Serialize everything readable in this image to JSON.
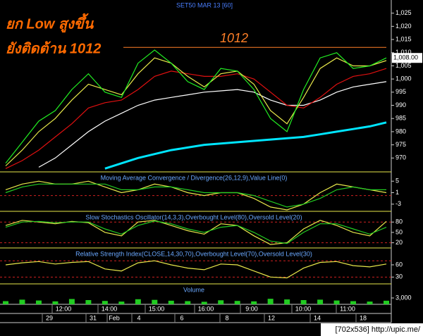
{
  "chart_data": [
    {
      "type": "line",
      "title": "SET50 MAR 13  [60]",
      "annotations": [
        "ยก Low สูงขึ้น",
        "ยังติดต้าน 1012"
      ],
      "resistance": 1012,
      "last_price": {
        "value": 1008,
        "label": "1,008.00"
      },
      "ylim": [
        965,
        1030
      ],
      "yticks": [
        970,
        975,
        980,
        985,
        990,
        995,
        {
          "value": 1000,
          "label": "1,000"
        },
        {
          "value": 1005,
          "label": "1,005"
        },
        {
          "value": 1010,
          "label": "1,010"
        },
        {
          "value": 1015,
          "label": "1,015"
        },
        {
          "value": 1020,
          "label": "1,020"
        },
        {
          "value": 1025,
          "label": "1,025"
        }
      ],
      "series": [
        {
          "color": "#ffffff",
          "values": [
            null,
            null,
            966.5,
            970,
            975,
            980,
            984,
            987,
            990,
            992,
            993,
            994,
            995,
            995.5,
            996,
            995,
            992,
            990,
            990,
            992,
            995,
            997,
            998,
            999
          ]
        },
        {
          "color": "#00e5ff",
          "values": [
            null,
            null,
            null,
            null,
            null,
            null,
            966,
            968,
            970,
            971.5,
            973,
            974,
            975,
            975.5,
            976,
            976.5,
            977,
            977.5,
            978,
            979,
            980,
            981,
            982,
            983.5
          ]
        },
        {
          "color": "#e01010",
          "values": [
            966,
            969,
            973,
            978,
            983,
            989,
            991,
            992,
            996,
            1001,
            1003,
            1002,
            1001,
            1001,
            1002,
            1000,
            995,
            990,
            989,
            993,
            998,
            1001,
            1002,
            1004
          ]
        },
        {
          "color": "#e8e84a",
          "values": [
            967,
            973,
            980,
            985,
            992,
            998,
            996,
            994,
            1002,
            1008,
            1006,
            1001,
            997,
            1002,
            1003,
            998,
            988,
            983,
            993,
            1004,
            1008,
            1005,
            1005,
            1007
          ]
        },
        {
          "color": "#22ee22",
          "values": [
            968,
            976,
            984,
            988,
            996,
            1002,
            995,
            993,
            1006,
            1011,
            1006,
            999,
            996,
            1004,
            1003,
            996,
            985,
            980,
            996,
            1008,
            1010,
            1004,
            1005,
            1008
          ]
        }
      ]
    },
    {
      "type": "line",
      "title": "Moving Average Convergence / Divergence(26,12,9),Value Line(0)",
      "ylim": [
        -5.25,
        7.75
      ],
      "yticks": [
        -3,
        1,
        5
      ],
      "levels": [
        0
      ],
      "series": [
        {
          "color": "#e8e84a",
          "values": [
            2,
            4,
            5,
            4,
            4,
            5,
            3,
            1,
            2,
            4,
            3,
            1,
            0,
            1,
            1,
            -1,
            -4,
            -5,
            -3,
            1,
            4,
            3,
            2,
            1
          ]
        },
        {
          "color": "#22cc22",
          "values": [
            1,
            3,
            4,
            4,
            4,
            4,
            4,
            2,
            2,
            3,
            3,
            2,
            1,
            1,
            1,
            0,
            -2,
            -4,
            -3,
            -1,
            2,
            3,
            2,
            2
          ]
        }
      ]
    },
    {
      "type": "line",
      "title": "Slow Stochastics Oscillator(14,3,3),Overbought Level(80),Oversold Level(20)",
      "ylim": [
        7,
        107
      ],
      "yticks": [
        20,
        50,
        80
      ],
      "levels": [
        80,
        20
      ],
      "series": [
        {
          "color": "#e8e84a",
          "values": [
            70,
            85,
            80,
            75,
            82,
            78,
            50,
            40,
            80,
            85,
            70,
            55,
            45,
            75,
            70,
            40,
            15,
            20,
            60,
            85,
            70,
            50,
            40,
            82
          ]
        },
        {
          "color": "#22cc22",
          "values": [
            65,
            80,
            82,
            78,
            80,
            80,
            60,
            45,
            70,
            83,
            75,
            60,
            50,
            65,
            70,
            50,
            25,
            18,
            50,
            75,
            75,
            60,
            45,
            65
          ]
        }
      ]
    },
    {
      "type": "line",
      "title": "Relative Strength Index(CLOSE,14,30,70),Overbought Level(70),Oversold Level(30)",
      "ylim": [
        15,
        98
      ],
      "yticks": [
        30,
        60
      ],
      "levels": [
        70,
        30
      ],
      "series": [
        {
          "color": "#e8e84a",
          "values": [
            60,
            65,
            68,
            62,
            66,
            68,
            50,
            45,
            65,
            70,
            60,
            52,
            48,
            62,
            60,
            45,
            30,
            28,
            52,
            66,
            68,
            58,
            55,
            62
          ]
        }
      ]
    },
    {
      "type": "bar",
      "title": "Volume",
      "ylim": [
        0,
        9000
      ],
      "yticks": [
        {
          "value": 3000,
          "label": "3,000"
        }
      ],
      "color": "#22cc22",
      "values": [
        1500,
        2200,
        1800,
        1400,
        2500,
        2000,
        1600,
        1300,
        2400,
        2100,
        1700,
        1500,
        1200,
        1900,
        1600,
        1400,
        2600,
        2300,
        2000,
        2200,
        1800,
        1500,
        1300,
        1700
      ]
    }
  ],
  "x_axis": {
    "times": [
      "12:00",
      "14:00",
      "15:00",
      "16:00",
      "9:00",
      "10:00",
      "11:00"
    ],
    "dates": [
      "29",
      "31",
      "Feb",
      "4",
      "6",
      "8",
      "12",
      "14",
      "18"
    ]
  },
  "watermark": "[702x536] http://upic.me/"
}
